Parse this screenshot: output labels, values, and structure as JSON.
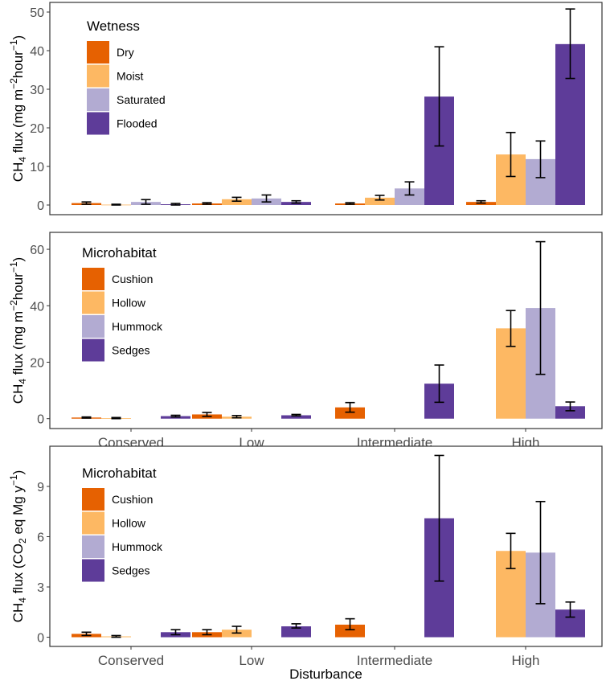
{
  "colors": {
    "orange_dark": "#e66101",
    "orange_light": "#fdb863",
    "purple_light": "#b2abd2",
    "purple_dark": "#5e3c99",
    "panel_border": "#333333",
    "error_bar": "#000000"
  },
  "chart_data": [
    {
      "type": "bar",
      "ylabel": "CH4 flux (mg m−2hour−1)",
      "ylabel_parts": {
        "pre": "CH",
        "sub": "4",
        "mid": " flux (mg m",
        "sup1": "−2",
        "mid2": "hour",
        "sup2": "−1",
        "post": ")"
      },
      "legend_title": "Wetness",
      "ylim": [
        -2.5,
        52.5
      ],
      "yticks": [
        0,
        10,
        20,
        30,
        40,
        50
      ],
      "categories": [
        "Conserved",
        "Low",
        "Intermediate",
        "High"
      ],
      "show_xticks": false,
      "series": [
        {
          "name": "Dry",
          "color_key": "orange_dark",
          "values": [
            0.5,
            0.4,
            0.4,
            0.8
          ],
          "err_low": [
            0.2,
            0.2,
            0.2,
            0.5
          ],
          "err_high": [
            0.8,
            0.6,
            0.6,
            1.1
          ]
        },
        {
          "name": "Moist",
          "color_key": "orange_light",
          "values": [
            0.1,
            1.5,
            1.9,
            13.1
          ],
          "err_low": [
            0.0,
            1.0,
            1.3,
            7.4
          ],
          "err_high": [
            0.2,
            2.0,
            2.5,
            18.8
          ]
        },
        {
          "name": "Saturated",
          "color_key": "purple_light",
          "values": [
            0.8,
            1.7,
            4.3,
            11.9
          ],
          "err_low": [
            0.2,
            0.8,
            2.6,
            7.1
          ],
          "err_high": [
            1.4,
            2.6,
            6.0,
            16.6
          ]
        },
        {
          "name": "Flooded",
          "color_key": "purple_dark",
          "values": [
            0.2,
            0.8,
            28.1,
            41.7
          ],
          "err_low": [
            0.0,
            0.5,
            15.3,
            32.8
          ],
          "err_high": [
            0.4,
            1.1,
            41.0,
            50.8
          ]
        }
      ]
    },
    {
      "type": "bar",
      "ylabel": "CH4 flux (mg m−2hour−1)",
      "ylabel_parts": {
        "pre": "CH",
        "sub": "4",
        "mid": " flux (mg m",
        "sup1": "−2",
        "mid2": "hour",
        "sup2": "−1",
        "post": ")"
      },
      "legend_title": "Microhabitat",
      "ylim": [
        -3.5,
        66
      ],
      "yticks": [
        0,
        20,
        40,
        60
      ],
      "categories": [
        "Conserved",
        "Low",
        "Intermediate",
        "High"
      ],
      "show_xticks": true,
      "series": [
        {
          "name": "Cushion",
          "color_key": "orange_dark",
          "values": [
            0.4,
            1.5,
            4.0,
            null
          ],
          "err_low": [
            0.2,
            0.8,
            2.3,
            null
          ],
          "err_high": [
            0.6,
            2.2,
            5.7,
            null
          ]
        },
        {
          "name": "Hollow",
          "color_key": "orange_light",
          "values": [
            0.2,
            0.7,
            null,
            32.0
          ],
          "err_low": [
            0.0,
            0.3,
            null,
            25.6
          ],
          "err_high": [
            0.4,
            1.1,
            null,
            38.3
          ]
        },
        {
          "name": "Hummock",
          "color_key": "purple_light",
          "values": [
            null,
            null,
            null,
            39.2
          ],
          "err_low": [
            null,
            null,
            null,
            15.7
          ],
          "err_high": [
            null,
            null,
            null,
            62.7
          ]
        },
        {
          "name": "Sedges",
          "color_key": "purple_dark",
          "values": [
            0.9,
            1.2,
            12.4,
            4.4
          ],
          "err_low": [
            0.6,
            1.0,
            5.8,
            2.8
          ],
          "err_high": [
            1.2,
            1.5,
            19.0,
            5.9
          ]
        }
      ]
    },
    {
      "type": "bar",
      "ylabel": "CH4 flux (CO2 eq Mg y−1)",
      "ylabel_parts": {
        "pre": "CH",
        "sub": "4",
        "mid": " flux (CO",
        "sub2": "2",
        "mid2": " eq Mg y",
        "sup2": "−1",
        "post": ")"
      },
      "legend_title": "Microhabitat",
      "xlabel": "Disturbance",
      "ylim": [
        -0.55,
        11.4
      ],
      "yticks": [
        0,
        3,
        6,
        9
      ],
      "categories": [
        "Conserved",
        "Low",
        "Intermediate",
        "High"
      ],
      "show_xticks": true,
      "series": [
        {
          "name": "Cushion",
          "color_key": "orange_dark",
          "values": [
            0.2,
            0.3,
            0.75,
            null
          ],
          "err_low": [
            0.1,
            0.15,
            0.45,
            null
          ],
          "err_high": [
            0.3,
            0.45,
            1.1,
            null
          ]
        },
        {
          "name": "Hollow",
          "color_key": "orange_light",
          "values": [
            0.05,
            0.45,
            null,
            5.15
          ],
          "err_low": [
            0.0,
            0.25,
            null,
            4.1
          ],
          "err_high": [
            0.1,
            0.65,
            null,
            6.2
          ]
        },
        {
          "name": "Hummock",
          "color_key": "purple_light",
          "values": [
            null,
            null,
            null,
            5.05
          ],
          "err_low": [
            null,
            null,
            null,
            2.0
          ],
          "err_high": [
            null,
            null,
            null,
            8.1
          ]
        },
        {
          "name": "Sedges",
          "color_key": "purple_dark",
          "values": [
            0.3,
            0.65,
            7.1,
            1.65
          ],
          "err_low": [
            0.15,
            0.55,
            3.35,
            1.2
          ],
          "err_high": [
            0.45,
            0.8,
            10.85,
            2.1
          ]
        }
      ]
    }
  ]
}
